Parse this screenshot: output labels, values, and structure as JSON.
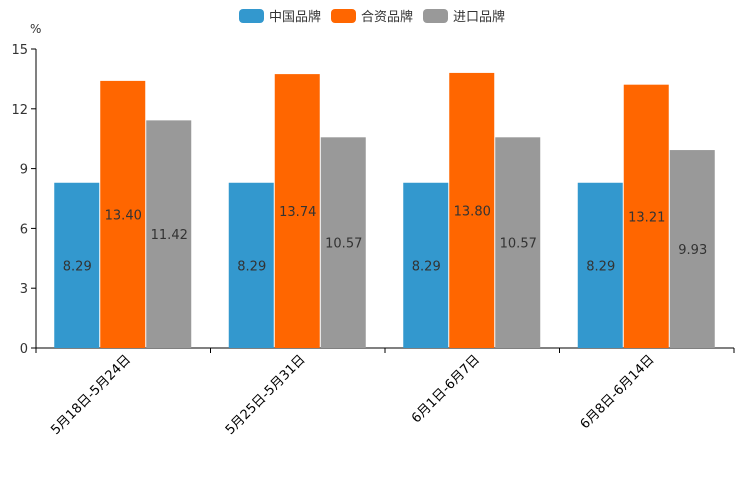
{
  "chart_data": {
    "type": "bar",
    "unit_label": "%",
    "categories": [
      "5月18日-5月24日",
      "5月25日-5月31日",
      "6月1日-6月7日",
      "6月8日-6月14日"
    ],
    "series": [
      {
        "name": "中国品牌",
        "color": "#3398ce",
        "values": [
          8.29,
          8.29,
          8.29,
          8.29
        ]
      },
      {
        "name": "合资品牌",
        "color": "#ff6600",
        "values": [
          13.4,
          13.74,
          13.8,
          13.21
        ]
      },
      {
        "name": "进口品牌",
        "color": "#999999",
        "values": [
          11.42,
          10.57,
          10.57,
          9.93
        ]
      }
    ],
    "ylim": [
      0,
      15
    ],
    "yticks": [
      0,
      3,
      6,
      9,
      12,
      15
    ],
    "legend_position": "top-center",
    "grid": false
  }
}
